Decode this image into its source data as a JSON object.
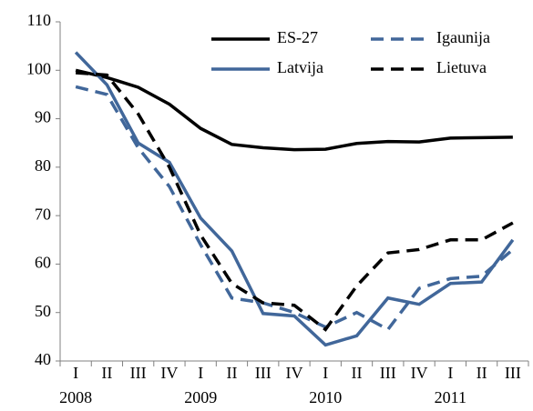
{
  "chart_data": {
    "type": "line",
    "categories": [
      "I",
      "II",
      "III",
      "IV",
      "I",
      "II",
      "III",
      "IV",
      "I",
      "II",
      "III",
      "IV",
      "I",
      "II",
      "III"
    ],
    "years": [
      "2008",
      "2009",
      "2010",
      "2011"
    ],
    "series": [
      {
        "name": "ES-27",
        "color": "#000000",
        "dashed": false,
        "values": [
          100,
          98.5,
          96.5,
          93,
          88,
          84.7,
          84,
          83.6,
          83.7,
          84.9,
          85.3,
          85.2,
          86,
          86.1,
          86.2
        ]
      },
      {
        "name": "Igaunija",
        "color": "#41679a",
        "dashed": true,
        "values": [
          96.6,
          95,
          84,
          76,
          64,
          53,
          52,
          50,
          47,
          50,
          46.5,
          55,
          57,
          57.5,
          63
        ]
      },
      {
        "name": "Latvija",
        "color": "#41679a",
        "dashed": false,
        "values": [
          103.7,
          97,
          85,
          81,
          69.5,
          62.7,
          49.8,
          49.3,
          43.3,
          45.2,
          53,
          51.7,
          56,
          56.3,
          65
        ]
      },
      {
        "name": "Lietuva",
        "color": "#000000",
        "dashed": true,
        "values": [
          99.5,
          99,
          91,
          80,
          66,
          56,
          52,
          51.5,
          46.5,
          55.5,
          62.3,
          63,
          65,
          65,
          68.5
        ]
      }
    ],
    "ylim": [
      40,
      110
    ],
    "yticks": [
      40,
      50,
      60,
      70,
      80,
      90,
      100,
      110
    ],
    "grid": false
  }
}
